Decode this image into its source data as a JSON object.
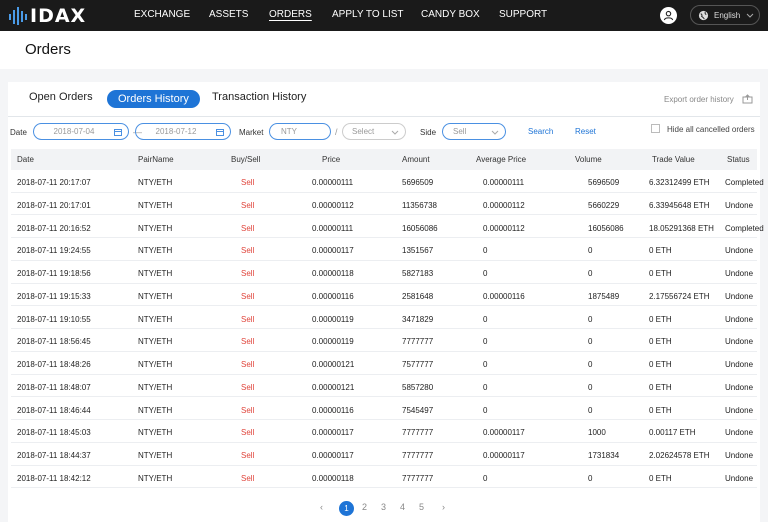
{
  "logo": {
    "text": "IDAX"
  },
  "nav": {
    "items": [
      {
        "label": "EXCHANGE"
      },
      {
        "label": "ASSETS"
      },
      {
        "label": "ORDERS"
      },
      {
        "label": "APPLY TO LIST"
      },
      {
        "label": "CANDY BOX"
      },
      {
        "label": "SUPPORT"
      }
    ],
    "active": "ORDERS",
    "language": "English"
  },
  "page": {
    "title": "Orders"
  },
  "tabs": [
    {
      "label": "Open Orders"
    },
    {
      "label": "Orders History"
    },
    {
      "label": "Transaction History"
    }
  ],
  "export_label": "Export order history",
  "filters": {
    "date_label": "Date",
    "date_from": "2018-07-04",
    "date_to": "2018-07-12",
    "date_separator": "—",
    "market_label": "Market",
    "market_placeholder": "NTY",
    "market_separator": "/",
    "market_quote_placeholder": "Select",
    "side_label": "Side",
    "side_placeholder": "Sell",
    "search_label": "Search",
    "reset_label": "Reset",
    "hide_cancelled_label": "Hide all cancelled orders"
  },
  "table": {
    "columns": [
      "Date",
      "PairName",
      "Buy/Sell",
      "Price",
      "Amount",
      "Average Price",
      "Volume",
      "Trade Value",
      "Status"
    ],
    "rows": [
      [
        "2018-07-11 20:17:07",
        "NTY/ETH",
        "Sell",
        "0.00000111",
        "5696509",
        "0.00000111",
        "5696509",
        "6.32312499 ETH",
        "Completed"
      ],
      [
        "2018-07-11 20:17:01",
        "NTY/ETH",
        "Sell",
        "0.00000112",
        "11356738",
        "0.00000112",
        "5660229",
        "6.33945648 ETH",
        "Undone"
      ],
      [
        "2018-07-11 20:16:52",
        "NTY/ETH",
        "Sell",
        "0.00000111",
        "16056086",
        "0.00000112",
        "16056086",
        "18.05291368 ETH",
        "Completed"
      ],
      [
        "2018-07-11 19:24:55",
        "NTY/ETH",
        "Sell",
        "0.00000117",
        "1351567",
        "0",
        "0",
        "0 ETH",
        "Undone"
      ],
      [
        "2018-07-11 19:18:56",
        "NTY/ETH",
        "Sell",
        "0.00000118",
        "5827183",
        "0",
        "0",
        "0 ETH",
        "Undone"
      ],
      [
        "2018-07-11 19:15:33",
        "NTY/ETH",
        "Sell",
        "0.00000116",
        "2581648",
        "0.00000116",
        "1875489",
        "2.17556724 ETH",
        "Undone"
      ],
      [
        "2018-07-11 19:10:55",
        "NTY/ETH",
        "Sell",
        "0.00000119",
        "3471829",
        "0",
        "0",
        "0 ETH",
        "Undone"
      ],
      [
        "2018-07-11 18:56:45",
        "NTY/ETH",
        "Sell",
        "0.00000119",
        "7777777",
        "0",
        "0",
        "0 ETH",
        "Undone"
      ],
      [
        "2018-07-11 18:48:26",
        "NTY/ETH",
        "Sell",
        "0.00000121",
        "7577777",
        "0",
        "0",
        "0 ETH",
        "Undone"
      ],
      [
        "2018-07-11 18:48:07",
        "NTY/ETH",
        "Sell",
        "0.00000121",
        "5857280",
        "0",
        "0",
        "0 ETH",
        "Undone"
      ],
      [
        "2018-07-11 18:46:44",
        "NTY/ETH",
        "Sell",
        "0.00000116",
        "7545497",
        "0",
        "0",
        "0 ETH",
        "Undone"
      ],
      [
        "2018-07-11 18:45:03",
        "NTY/ETH",
        "Sell",
        "0.00000117",
        "7777777",
        "0.00000117",
        "1000",
        "0.00117 ETH",
        "Undone"
      ],
      [
        "2018-07-11 18:44:37",
        "NTY/ETH",
        "Sell",
        "0.00000117",
        "7777777",
        "0.00000117",
        "1731834",
        "2.02624578 ETH",
        "Undone"
      ],
      [
        "2018-07-11 18:42:12",
        "NTY/ETH",
        "Sell",
        "0.00000118",
        "7777777",
        "0",
        "0",
        "0 ETH",
        "Undone"
      ]
    ]
  },
  "pagination": {
    "prev": "‹",
    "pages": [
      "1",
      "2",
      "3",
      "4",
      "5"
    ],
    "current": "1",
    "next": "›"
  },
  "colors": {
    "accent": "#1e74d6",
    "sell": "#e0443b",
    "nav_bg": "#1a1a1a"
  }
}
